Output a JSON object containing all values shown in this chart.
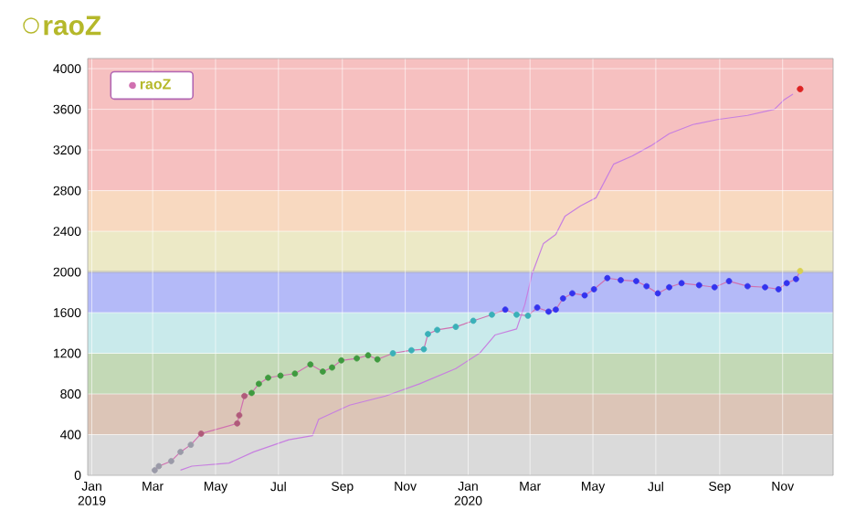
{
  "chart_data": {
    "type": "line",
    "title": "raoZ",
    "xlim": [
      "2018-12-28",
      "2020-12-20"
    ],
    "ylim": [
      0,
      4100
    ],
    "xticks": [
      {
        "value": "2019-01-01",
        "label": "Jan 2019"
      },
      {
        "value": "2019-03-01",
        "label": "Mar"
      },
      {
        "value": "2019-05-01",
        "label": "May"
      },
      {
        "value": "2019-07-01",
        "label": "Jul"
      },
      {
        "value": "2019-09-01",
        "label": "Sep"
      },
      {
        "value": "2019-11-01",
        "label": "Nov"
      },
      {
        "value": "2020-01-01",
        "label": "Jan 2020"
      },
      {
        "value": "2020-03-01",
        "label": "Mar"
      },
      {
        "value": "2020-05-01",
        "label": "May"
      },
      {
        "value": "2020-07-01",
        "label": "Jul"
      },
      {
        "value": "2020-09-01",
        "label": "Sep"
      },
      {
        "value": "2020-11-01",
        "label": "Nov"
      }
    ],
    "yticks": [
      0,
      400,
      800,
      1200,
      1600,
      2000,
      2400,
      2800,
      3200,
      3600,
      4000
    ],
    "grid": true,
    "legend": "top left",
    "bands": [
      {
        "axis": "y",
        "from": 0,
        "to": 400,
        "color": "#dadada"
      },
      {
        "axis": "y",
        "from": 400,
        "to": 800,
        "color": "#dcc5b7"
      },
      {
        "axis": "y",
        "from": 800,
        "to": 1200,
        "color": "#c3d9b6"
      },
      {
        "axis": "y",
        "from": 1200,
        "to": 1600,
        "color": "#c9eaeb"
      },
      {
        "axis": "y",
        "from": 1600,
        "to": 2000,
        "color": "#b4baf8"
      },
      {
        "axis": "y",
        "from": 2000,
        "to": 2400,
        "color": "#ece9c6"
      },
      {
        "axis": "y",
        "from": 2400,
        "to": 2800,
        "color": "#f8d9c0"
      },
      {
        "axis": "y",
        "from": 2800,
        "to": 4100,
        "color": "#f6c0c0"
      }
    ],
    "ref_lines": [
      {
        "axis": "y",
        "value": 2000,
        "color": "#8a8a8a"
      }
    ],
    "series": [
      {
        "name": "raoZ",
        "color": "#d070b0",
        "marker": "circle",
        "x": [
          "2019-03-03",
          "2019-03-07",
          "2019-03-19",
          "2019-03-28",
          "2019-04-07",
          "2019-04-17",
          "2019-05-22",
          "2019-05-24",
          "2019-05-29",
          "2019-06-05",
          "2019-06-12",
          "2019-06-21",
          "2019-07-03",
          "2019-07-17",
          "2019-08-01",
          "2019-08-13",
          "2019-08-22",
          "2019-08-31",
          "2019-09-15",
          "2019-09-26",
          "2019-10-05",
          "2019-10-20",
          "2019-11-07",
          "2019-11-19",
          "2019-11-23",
          "2019-12-02",
          "2019-12-20",
          "2020-01-06",
          "2020-01-24",
          "2020-02-06",
          "2020-02-17",
          "2020-02-28",
          "2020-03-08",
          "2020-03-19",
          "2020-03-26",
          "2020-04-02",
          "2020-04-11",
          "2020-04-23",
          "2020-05-02",
          "2020-05-15",
          "2020-05-28",
          "2020-06-12",
          "2020-06-22",
          "2020-07-03",
          "2020-07-14",
          "2020-07-26",
          "2020-08-12",
          "2020-08-27",
          "2020-09-10",
          "2020-09-28",
          "2020-10-15",
          "2020-10-28",
          "2020-11-05",
          "2020-11-14",
          "2020-11-18"
        ],
        "values": [
          50,
          90,
          140,
          230,
          300,
          410,
          510,
          590,
          780,
          810,
          900,
          960,
          980,
          1000,
          1090,
          1020,
          1060,
          1130,
          1150,
          1180,
          1140,
          1200,
          1230,
          1240,
          1390,
          1430,
          1460,
          1520,
          1580,
          1630,
          1580,
          1570,
          1650,
          1610,
          1630,
          1740,
          1790,
          1770,
          1830,
          1940,
          1920,
          1910,
          1860,
          1790,
          1850,
          1890,
          1870,
          1850,
          1910,
          1860,
          1850,
          1830,
          1890,
          1930,
          2010
        ],
        "colors": [
          "#9a9aa8",
          "#9a9aa8",
          "#9a9aa8",
          "#9a9aa8",
          "#9a9aa8",
          "#b05a7a",
          "#b05a7a",
          "#b05a7a",
          "#b05a7a",
          "#3f9a3f",
          "#3f9a3f",
          "#3f9a3f",
          "#3f9a3f",
          "#3f9a3f",
          "#3f9a3f",
          "#3f9a3f",
          "#3f9a3f",
          "#3f9a3f",
          "#3f9a3f",
          "#3f9a3f",
          "#3f9a3f",
          "#3ab0b8",
          "#3ab0b8",
          "#3ab0b8",
          "#3ab0b8",
          "#3ab0b8",
          "#3ab0b8",
          "#3ab0b8",
          "#3ab0b8",
          "#3333ee",
          "#3ab0b8",
          "#3ab0b8",
          "#3333ee",
          "#3333ee",
          "#3333ee",
          "#3333ee",
          "#3333ee",
          "#3333ee",
          "#3333ee",
          "#3333ee",
          "#3333ee",
          "#3333ee",
          "#3333ee",
          "#3333ee",
          "#3333ee",
          "#3333ee",
          "#3333ee",
          "#3333ee",
          "#3333ee",
          "#3333ee",
          "#3333ee",
          "#3333ee",
          "#3333ee",
          "#3333ee",
          "#d8d050"
        ]
      },
      {
        "color": "#c77fe0",
        "marker": "none",
        "x": [
          "2019-03-28",
          "2019-04-08",
          "2019-05-14",
          "2019-06-07",
          "2019-07-11",
          "2019-08-03",
          "2019-08-09",
          "2019-09-08",
          "2019-10-13",
          "2019-11-15",
          "2019-12-20",
          "2020-01-12",
          "2020-01-27",
          "2020-02-17",
          "2020-02-25",
          "2020-03-03",
          "2020-03-14",
          "2020-03-26",
          "2020-04-04",
          "2020-04-19",
          "2020-05-04",
          "2020-05-21",
          "2020-06-08",
          "2020-06-26",
          "2020-07-14",
          "2020-08-06",
          "2020-08-30",
          "2020-09-28",
          "2020-10-24",
          "2020-11-02",
          "2020-11-11"
        ],
        "values": [
          50,
          90,
          120,
          230,
          350,
          390,
          550,
          690,
          780,
          900,
          1050,
          1200,
          1380,
          1440,
          1680,
          1980,
          2280,
          2370,
          2550,
          2650,
          2730,
          3060,
          3140,
          3240,
          3360,
          3450,
          3500,
          3540,
          3600,
          3690,
          3750
        ]
      },
      {
        "type": "scatter",
        "color": "#dd2222",
        "marker": "circle",
        "x": [
          "2020-11-18"
        ],
        "values": [
          3800
        ]
      }
    ]
  }
}
